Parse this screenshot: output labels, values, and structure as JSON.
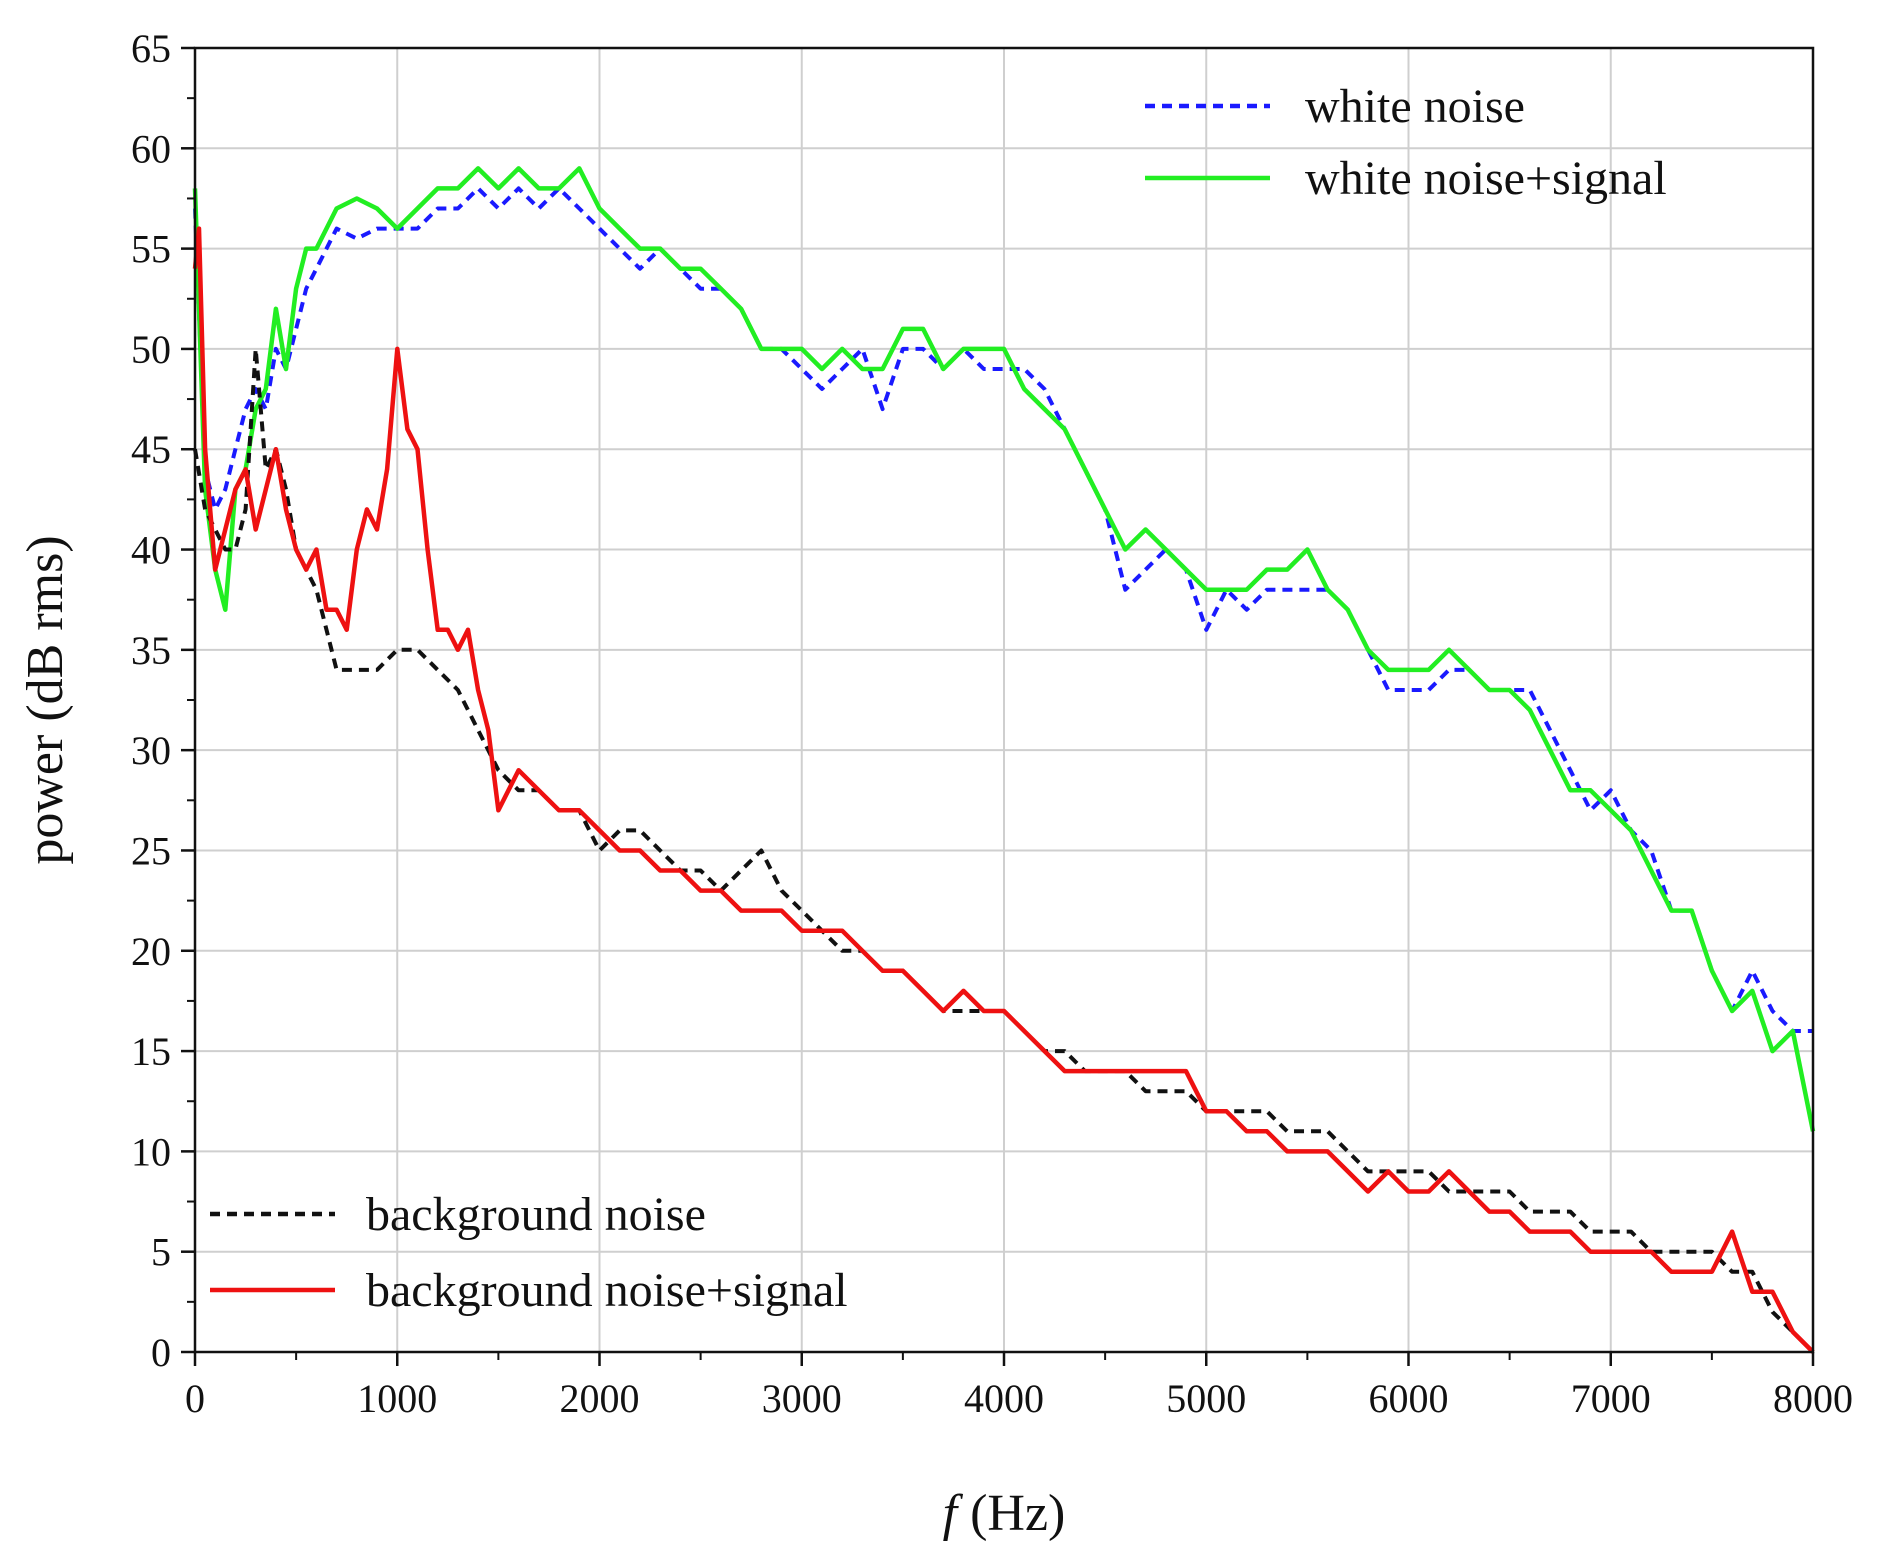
{
  "chart_data": {
    "type": "line",
    "title": "",
    "xlabel_italic": "f",
    "xlabel_rest": " (Hz)",
    "ylabel": "power (dB rms)",
    "xlim": [
      0,
      8000
    ],
    "ylim": [
      0,
      65
    ],
    "xticks": [
      0,
      1000,
      2000,
      3000,
      4000,
      5000,
      6000,
      7000,
      8000
    ],
    "yticks": [
      0,
      5,
      10,
      15,
      20,
      25,
      30,
      35,
      40,
      45,
      50,
      55,
      60,
      65
    ],
    "grid": true,
    "legends": [
      {
        "placement": "top-right",
        "entries": [
          "white noise",
          "white noise+signal"
        ]
      },
      {
        "placement": "bottom-left",
        "entries": [
          "background noise",
          "background noise+signal"
        ]
      }
    ],
    "series": [
      {
        "name": "white noise",
        "color": "#1a1aff",
        "style": "dashed",
        "x": [
          0,
          50,
          100,
          150,
          200,
          250,
          300,
          350,
          400,
          450,
          500,
          550,
          600,
          700,
          800,
          900,
          1000,
          1100,
          1200,
          1300,
          1400,
          1500,
          1600,
          1700,
          1800,
          1900,
          2000,
          2100,
          2200,
          2300,
          2400,
          2500,
          2600,
          2700,
          2800,
          2900,
          3000,
          3100,
          3200,
          3300,
          3400,
          3500,
          3600,
          3700,
          3800,
          3900,
          4000,
          4100,
          4200,
          4300,
          4400,
          4500,
          4600,
          4700,
          4800,
          4900,
          5000,
          5100,
          5200,
          5300,
          5400,
          5500,
          5600,
          5700,
          5800,
          5900,
          6000,
          6100,
          6200,
          6300,
          6400,
          6500,
          6600,
          6700,
          6800,
          6900,
          7000,
          7100,
          7200,
          7300,
          7400,
          7500,
          7600,
          7700,
          7800,
          7900,
          8000
        ],
        "values": [
          57,
          44,
          42,
          43,
          45,
          47,
          48,
          47,
          50,
          49,
          51,
          53,
          54,
          56,
          55.5,
          56,
          56,
          56,
          57,
          57,
          58,
          57,
          58,
          57,
          58,
          57,
          56,
          55,
          54,
          55,
          54,
          53,
          53,
          52,
          50,
          50,
          49,
          48,
          49,
          50,
          47,
          50,
          50,
          49,
          50,
          49,
          49,
          49,
          48,
          46,
          44,
          42,
          38,
          39,
          40,
          39,
          36,
          38,
          37,
          38,
          38,
          38,
          38,
          37,
          35,
          33,
          33,
          33,
          34,
          34,
          33,
          33,
          33,
          31,
          29,
          27,
          28,
          26,
          25,
          22,
          22,
          19,
          17,
          19,
          17,
          16,
          16
        ]
      },
      {
        "name": "white noise+signal",
        "color": "#22ee22",
        "style": "solid",
        "x": [
          0,
          50,
          100,
          150,
          200,
          250,
          300,
          350,
          400,
          450,
          500,
          550,
          600,
          700,
          800,
          900,
          1000,
          1100,
          1200,
          1300,
          1400,
          1500,
          1600,
          1700,
          1800,
          1900,
          2000,
          2100,
          2200,
          2300,
          2400,
          2500,
          2600,
          2700,
          2800,
          2900,
          3000,
          3100,
          3200,
          3300,
          3400,
          3500,
          3600,
          3700,
          3800,
          3900,
          4000,
          4100,
          4200,
          4300,
          4400,
          4500,
          4600,
          4700,
          4800,
          4900,
          5000,
          5100,
          5200,
          5300,
          5400,
          5500,
          5600,
          5700,
          5800,
          5900,
          6000,
          6100,
          6200,
          6300,
          6400,
          6500,
          6600,
          6700,
          6800,
          6900,
          7000,
          7100,
          7200,
          7300,
          7400,
          7500,
          7600,
          7700,
          7800,
          7900,
          8000
        ],
        "values": [
          58,
          43,
          39,
          37,
          43,
          44,
          47,
          48,
          52,
          49,
          53,
          55,
          55,
          57,
          57.5,
          57,
          56,
          57,
          58,
          58,
          59,
          58,
          59,
          58,
          58,
          59,
          57,
          56,
          55,
          55,
          54,
          54,
          53,
          52,
          50,
          50,
          50,
          49,
          50,
          49,
          49,
          51,
          51,
          49,
          50,
          50,
          50,
          48,
          47,
          46,
          44,
          42,
          40,
          41,
          40,
          39,
          38,
          38,
          38,
          39,
          39,
          40,
          38,
          37,
          35,
          34,
          34,
          34,
          35,
          34,
          33,
          33,
          32,
          30,
          28,
          28,
          27,
          26,
          24,
          22,
          22,
          19,
          17,
          18,
          15,
          16,
          11
        ]
      },
      {
        "name": "background noise",
        "color": "#111111",
        "style": "dashed",
        "x": [
          0,
          50,
          100,
          150,
          200,
          250,
          300,
          350,
          400,
          450,
          500,
          550,
          600,
          700,
          800,
          900,
          1000,
          1100,
          1200,
          1300,
          1400,
          1500,
          1600,
          1700,
          1800,
          1900,
          2000,
          2100,
          2200,
          2300,
          2400,
          2500,
          2600,
          2700,
          2800,
          2900,
          3000,
          3100,
          3200,
          3300,
          3400,
          3500,
          3600,
          3700,
          3800,
          3900,
          4000,
          4100,
          4200,
          4300,
          4400,
          4500,
          4600,
          4700,
          4800,
          4900,
          5000,
          5100,
          5200,
          5300,
          5400,
          5500,
          5600,
          5700,
          5800,
          5900,
          6000,
          6100,
          6200,
          6300,
          6400,
          6500,
          6600,
          6700,
          6800,
          6900,
          7000,
          7100,
          7200,
          7300,
          7400,
          7500,
          7600,
          7700,
          7800,
          7900,
          8000
        ],
        "values": [
          45,
          42,
          41,
          40,
          40,
          42,
          50,
          44,
          45,
          43,
          40,
          39,
          38,
          34,
          34,
          34,
          35,
          35,
          34,
          33,
          31,
          29,
          28,
          28,
          27,
          27,
          25,
          26,
          26,
          25,
          24,
          24,
          23,
          24,
          25,
          23,
          22,
          21,
          20,
          20,
          19,
          19,
          18,
          17,
          17,
          17,
          17,
          16,
          15,
          15,
          14,
          14,
          14,
          13,
          13,
          13,
          12,
          12,
          12,
          12,
          11,
          11,
          11,
          10,
          9,
          9,
          9,
          9,
          8,
          8,
          8,
          8,
          7,
          7,
          7,
          6,
          6,
          6,
          5,
          5,
          5,
          5,
          4,
          4,
          2,
          1,
          0
        ]
      },
      {
        "name": "background noise+signal",
        "color": "#ee1111",
        "style": "solid",
        "x": [
          0,
          20,
          50,
          100,
          150,
          200,
          250,
          300,
          350,
          400,
          450,
          500,
          550,
          600,
          650,
          700,
          750,
          800,
          850,
          900,
          950,
          1000,
          1050,
          1100,
          1150,
          1200,
          1250,
          1300,
          1350,
          1400,
          1450,
          1500,
          1600,
          1700,
          1800,
          1900,
          2000,
          2100,
          2200,
          2300,
          2400,
          2500,
          2600,
          2700,
          2800,
          2900,
          3000,
          3100,
          3200,
          3300,
          3400,
          3500,
          3600,
          3700,
          3800,
          3900,
          4000,
          4100,
          4200,
          4300,
          4400,
          4500,
          4600,
          4700,
          4800,
          4900,
          5000,
          5100,
          5200,
          5300,
          5400,
          5500,
          5600,
          5700,
          5800,
          5900,
          6000,
          6100,
          6200,
          6300,
          6400,
          6500,
          6600,
          6700,
          6800,
          6900,
          7000,
          7100,
          7200,
          7300,
          7400,
          7500,
          7600,
          7700,
          7800,
          7900,
          8000
        ],
        "values": [
          54,
          56,
          45,
          39,
          41,
          43,
          44,
          41,
          43,
          45,
          42,
          40,
          39,
          40,
          37,
          37,
          36,
          40,
          42,
          41,
          44,
          50,
          46,
          45,
          40,
          36,
          36,
          35,
          36,
          33,
          31,
          27,
          29,
          28,
          27,
          27,
          26,
          25,
          25,
          24,
          24,
          23,
          23,
          22,
          22,
          22,
          21,
          21,
          21,
          20,
          19,
          19,
          18,
          17,
          18,
          17,
          17,
          16,
          15,
          14,
          14,
          14,
          14,
          14,
          14,
          14,
          12,
          12,
          11,
          11,
          10,
          10,
          10,
          9,
          8,
          9,
          8,
          8,
          9,
          8,
          7,
          7,
          6,
          6,
          6,
          5,
          5,
          5,
          5,
          4,
          4,
          4,
          6,
          3,
          3,
          1,
          0
        ]
      }
    ]
  }
}
